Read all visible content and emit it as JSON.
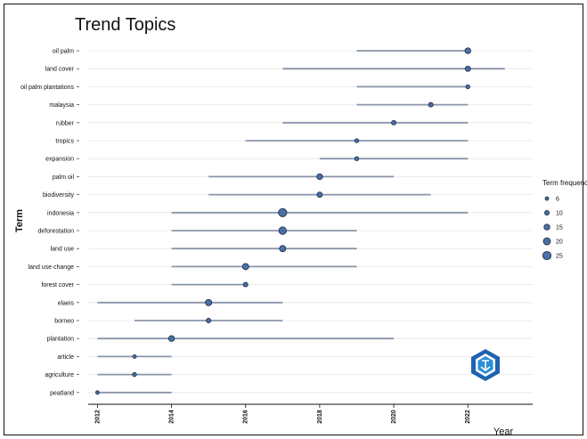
{
  "chart_data": {
    "type": "scatter",
    "title": "Trend Topics",
    "xlabel": "Year",
    "ylabel": "Term",
    "xlim": [
      2011.75,
      2023.75
    ],
    "x_ticks": [
      "2012",
      "2014",
      "2016",
      "2018",
      "2020",
      "2022"
    ],
    "grid": true,
    "legend": {
      "title": "Term frequency",
      "placement": "right",
      "entries": [
        "6",
        "10",
        "15",
        "20",
        "25"
      ],
      "values": [
        6,
        10,
        15,
        20,
        25
      ]
    },
    "colors": {
      "point": "#4a6fa5",
      "point_edge": "#1b2a44",
      "line": "#8a94aa"
    },
    "terms": [
      {
        "term": "oil palm",
        "start": 2019,
        "median": 2022,
        "end": 2022,
        "freq": 15
      },
      {
        "term": "land cover",
        "start": 2017,
        "median": 2022,
        "end": 2023,
        "freq": 13
      },
      {
        "term": "oil palm plantations",
        "start": 2019,
        "median": 2022,
        "end": 2022,
        "freq": 8
      },
      {
        "term": "malaysia",
        "start": 2019,
        "median": 2021,
        "end": 2022,
        "freq": 10
      },
      {
        "term": "rubber",
        "start": 2017,
        "median": 2020,
        "end": 2022,
        "freq": 10
      },
      {
        "term": "tropics",
        "start": 2016,
        "median": 2019,
        "end": 2022,
        "freq": 8
      },
      {
        "term": "expansion",
        "start": 2018,
        "median": 2019,
        "end": 2022,
        "freq": 8
      },
      {
        "term": "palm oil",
        "start": 2015,
        "median": 2018,
        "end": 2020,
        "freq": 15
      },
      {
        "term": "biodiversity",
        "start": 2015,
        "median": 2018,
        "end": 2021,
        "freq": 13
      },
      {
        "term": "indonesia",
        "start": 2014,
        "median": 2017,
        "end": 2022,
        "freq": 25
      },
      {
        "term": "deforestation",
        "start": 2014,
        "median": 2017,
        "end": 2019,
        "freq": 22
      },
      {
        "term": "land use",
        "start": 2014,
        "median": 2017,
        "end": 2019,
        "freq": 17
      },
      {
        "term": "land use change",
        "start": 2014,
        "median": 2016,
        "end": 2019,
        "freq": 17
      },
      {
        "term": "forest cover",
        "start": 2014,
        "median": 2016,
        "end": 2016,
        "freq": 10
      },
      {
        "term": "elaeis",
        "start": 2012,
        "median": 2015,
        "end": 2017,
        "freq": 17
      },
      {
        "term": "borneo",
        "start": 2013,
        "median": 2015,
        "end": 2017,
        "freq": 10
      },
      {
        "term": "plantation",
        "start": 2012,
        "median": 2014,
        "end": 2020,
        "freq": 15
      },
      {
        "term": "article",
        "start": 2012,
        "median": 2013,
        "end": 2014,
        "freq": 6
      },
      {
        "term": "agriculture",
        "start": 2012,
        "median": 2013,
        "end": 2014,
        "freq": 8
      },
      {
        "term": "peatland",
        "start": 2012,
        "median": 2012,
        "end": 2014,
        "freq": 6
      }
    ]
  }
}
